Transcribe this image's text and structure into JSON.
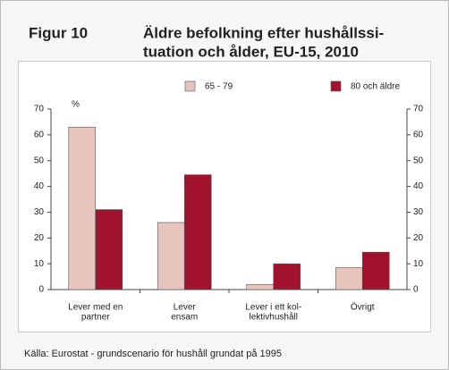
{
  "chart_data": {
    "type": "bar",
    "figure_label": "Figur 10",
    "title": [
      "Äldre befolkning efter hushållssi-",
      "tuation och ålder, EU-15, 2010"
    ],
    "y_unit": "%",
    "categories": [
      [
        "Lever med en",
        "partner"
      ],
      [
        "Lever",
        "ensam"
      ],
      [
        "Lever i ett kol-",
        "lektivhushåll"
      ],
      [
        "Övrigt"
      ]
    ],
    "series": [
      {
        "name": "65 - 79",
        "color": "#e8c4bf",
        "values": [
          63,
          26,
          2,
          8.5
        ]
      },
      {
        "name": "80 och äldre",
        "color": "#a0122e",
        "values": [
          31,
          44.5,
          10,
          14.5
        ]
      }
    ],
    "ylim": [
      0,
      70
    ],
    "yticks": [
      0,
      10,
      20,
      30,
      40,
      50,
      60,
      70
    ],
    "y2lim": [
      0,
      70
    ],
    "y2ticks": [
      0,
      10,
      20,
      30,
      40,
      50,
      60,
      70
    ],
    "source": "Källa: Eurostat - grundscenario för hushåll grundat på 1995"
  }
}
